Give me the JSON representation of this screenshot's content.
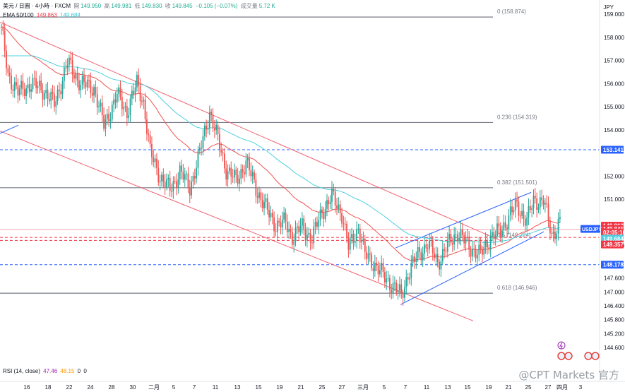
{
  "header": {
    "symbol": "美元 / 日圓 · 4小時 · FXCM",
    "open_label": "開",
    "open": "149.950",
    "high_label": "高",
    "high": "149.981",
    "low_label": "低",
    "low": "149.830",
    "close_label": "收",
    "close": "149.845",
    "change": "−0.105 (−0.07%)",
    "volume_label": "成交量",
    "volume": "5.72 K"
  },
  "ema": {
    "label": "EMA 50/100",
    "ema50": "149.863",
    "ema100": "149.684"
  },
  "rsi": {
    "label": "RSI (14, close)",
    "v1": "47.46",
    "v2": "48.15",
    "v3": "0",
    "v4": "0"
  },
  "currency": "JPY",
  "watermark": "@CPT Markets 官方",
  "colors": {
    "up": "#26a69a",
    "down": "#ef5350",
    "ema50": "#ef5350",
    "ema100": "#4dd0e1",
    "fib": "#787b86",
    "channel_down": "#f06070",
    "channel_up": "#2962ff",
    "dashed_blue": "#2962ff",
    "dashed_red": "#f23645"
  },
  "chart_data": {
    "type": "candlestick",
    "symbol": "USDJPY",
    "timeframe": "4h",
    "ylim": [
      144.3,
      159.2
    ],
    "y_ticks": [
      "159.000",
      "158.000",
      "157.000",
      "156.000",
      "155.000",
      "154.000",
      "152.000",
      "151.000",
      "149.000",
      "147.600",
      "147.000",
      "146.400",
      "145.800",
      "145.200",
      "144.600"
    ],
    "x_ticks": [
      "16",
      "18",
      "22",
      "24",
      "28",
      "30",
      "二月",
      "5",
      "7",
      "11",
      "13",
      "15",
      "19",
      "21",
      "25",
      "27",
      "三月",
      "5",
      "7",
      "11",
      "13",
      "15",
      "19",
      "21",
      "25",
      "27",
      "四月",
      "3"
    ],
    "fibonacci": [
      {
        "label": "0 (158.874)",
        "price": 158.874
      },
      {
        "label": "0.236 (154.319)",
        "price": 154.319
      },
      {
        "label": "0.382 (151.501)",
        "price": 151.501
      },
      {
        "label": "0.5 (149.224)",
        "price": 149.224
      },
      {
        "label": "0.618 (146.946)",
        "price": 146.946
      }
    ],
    "horizontal_lines": [
      {
        "price": 153.141,
        "style": "dashed",
        "color": "blue"
      },
      {
        "price": 148.178,
        "style": "dashed",
        "color": "blue"
      },
      {
        "price": 149.357,
        "style": "dashed",
        "color": "red"
      }
    ],
    "price_labels": [
      {
        "text": "153.141",
        "price": 153.141,
        "bg": "#2962ff"
      },
      {
        "text": "149.863",
        "price": 149.863,
        "bg": "#f23645"
      },
      {
        "text": "149.845",
        "price": 149.72,
        "bg": "#f23645"
      },
      {
        "text": "02:05:10",
        "price": 149.57,
        "bg": "#f23645"
      },
      {
        "text": "149.684",
        "price": 149.3,
        "bg": "#4dd0e1"
      },
      {
        "text": "149.357",
        "price": 149.05,
        "bg": "#f23645"
      },
      {
        "text": "148.178",
        "price": 148.178,
        "bg": "#2962ff"
      }
    ],
    "symbol_tag": "USDJPY",
    "anchors": [
      [
        0,
        158.3
      ],
      [
        4,
        156.4
      ],
      [
        10,
        155.6
      ],
      [
        18,
        156.0
      ],
      [
        26,
        155.7
      ],
      [
        32,
        155.1
      ],
      [
        40,
        156.9
      ],
      [
        48,
        156.0
      ],
      [
        56,
        155.8
      ],
      [
        62,
        154.2
      ],
      [
        70,
        155.5
      ],
      [
        76,
        154.8
      ],
      [
        82,
        156.0
      ],
      [
        86,
        155.2
      ],
      [
        90,
        153.0
      ],
      [
        96,
        152.0
      ],
      [
        102,
        151.4
      ],
      [
        108,
        152.2
      ],
      [
        114,
        151.5
      ],
      [
        120,
        153.0
      ],
      [
        126,
        154.8
      ],
      [
        130,
        153.8
      ],
      [
        136,
        152.3
      ],
      [
        142,
        151.8
      ],
      [
        148,
        152.6
      ],
      [
        154,
        151.5
      ],
      [
        160,
        150.6
      ],
      [
        166,
        149.9
      ],
      [
        172,
        150.0
      ],
      [
        176,
        149.4
      ],
      [
        182,
        149.8
      ],
      [
        188,
        149.3
      ],
      [
        194,
        150.5
      ],
      [
        200,
        151.1
      ],
      [
        206,
        150.4
      ],
      [
        210,
        148.9
      ],
      [
        216,
        149.8
      ],
      [
        220,
        148.6
      ],
      [
        226,
        148.2
      ],
      [
        232,
        147.6
      ],
      [
        238,
        147.2
      ],
      [
        242,
        146.8
      ],
      [
        246,
        147.8
      ],
      [
        252,
        148.6
      ],
      [
        258,
        149.1
      ],
      [
        264,
        148.3
      ],
      [
        270,
        149.0
      ],
      [
        276,
        149.6
      ],
      [
        280,
        149.2
      ],
      [
        284,
        148.9
      ],
      [
        290,
        148.6
      ],
      [
        296,
        149.4
      ],
      [
        302,
        149.6
      ],
      [
        308,
        150.4
      ],
      [
        312,
        150.7
      ],
      [
        318,
        150.1
      ],
      [
        322,
        150.9
      ],
      [
        328,
        151.0
      ],
      [
        333,
        149.4
      ],
      [
        338,
        150.1
      ]
    ]
  }
}
